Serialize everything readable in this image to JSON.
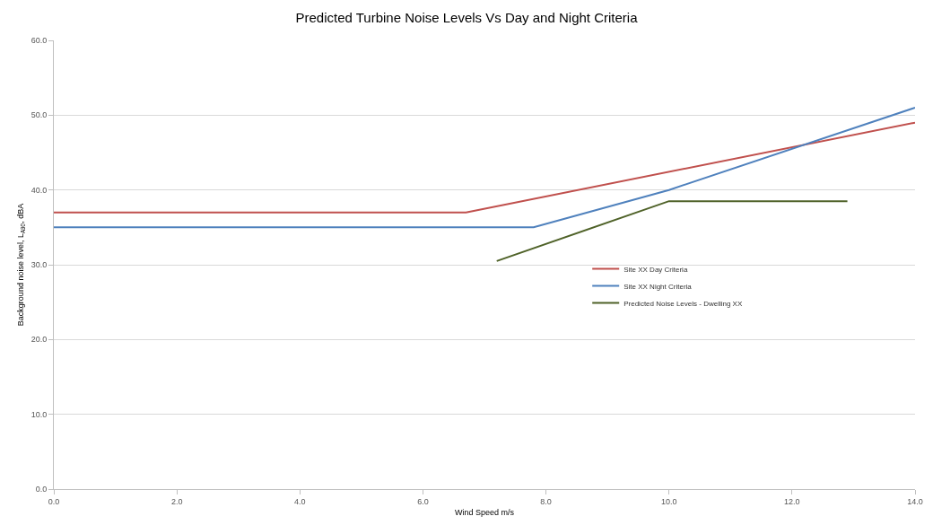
{
  "chart_data": {
    "type": "line",
    "title": "Predicted Turbine Noise Levels Vs Day and Night Criteria",
    "xlabel": "Wind Speed m/s",
    "ylabel": "Background noise level, L$_{A90}$, dBA",
    "series": [
      {
        "name": "Site XX Day Criteria",
        "color": "#c0504d",
        "x": [
          0,
          6.7,
          14
        ],
        "values": [
          37,
          37,
          49
        ]
      },
      {
        "name": "Site XX Night Criteria",
        "color": "#4f81bd",
        "x": [
          0,
          7.8,
          10,
          14
        ],
        "values": [
          35,
          35,
          40,
          51
        ]
      },
      {
        "name": "Predicted Noise Levels - Dwelling XX",
        "color": "#4f6228",
        "x": [
          7.2,
          10,
          12.9
        ],
        "values": [
          30.5,
          38.5,
          38.5
        ]
      }
    ],
    "xlim": [
      0,
      14
    ],
    "xticks": [
      {
        "value": 0,
        "label": "0.0"
      },
      {
        "value": 2,
        "label": "2.0"
      },
      {
        "value": 4,
        "label": "4.0"
      },
      {
        "value": 6,
        "label": "6.0"
      },
      {
        "value": 8,
        "label": "8.0"
      },
      {
        "value": 10,
        "label": "10.0"
      },
      {
        "value": 12,
        "label": "12.0"
      },
      {
        "value": 14,
        "label": "14.0"
      }
    ],
    "ylim": [
      0,
      60
    ],
    "yticks": [
      {
        "value": 0,
        "label": "0.0"
      },
      {
        "value": 10,
        "label": "10.0"
      },
      {
        "value": 20,
        "label": "20.0"
      },
      {
        "value": 30,
        "label": "30.0"
      },
      {
        "value": 40,
        "label": "40.0"
      },
      {
        "value": 50,
        "label": "50.0"
      },
      {
        "value": 60,
        "label": "60.0"
      }
    ],
    "grid": "y",
    "legend": "center right",
    "marker": "none",
    "line_style": "solid"
  }
}
